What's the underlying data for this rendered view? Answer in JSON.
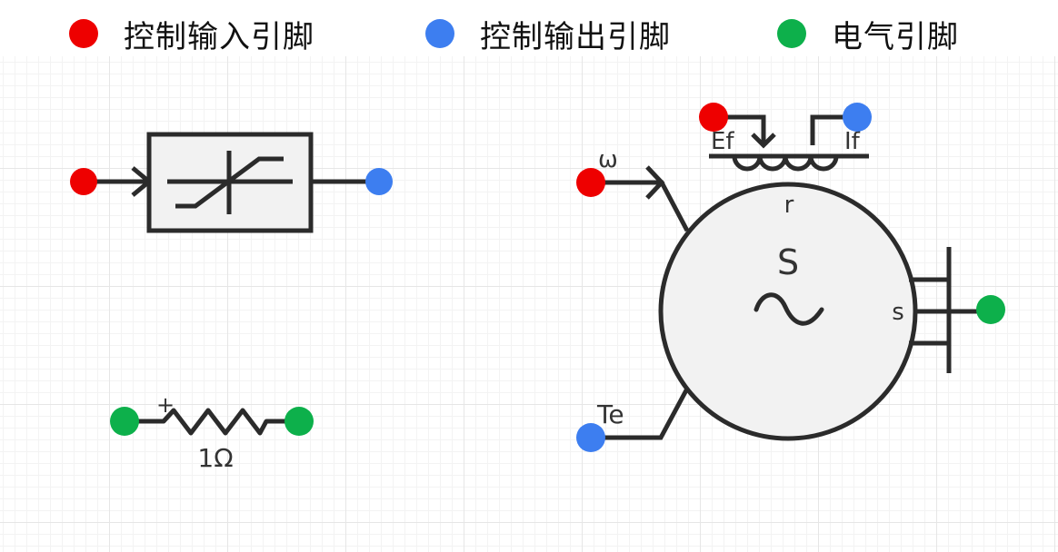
{
  "legend": [
    {
      "label": "控制输入引脚",
      "color": "#ee0000"
    },
    {
      "label": "控制输出引脚",
      "color": "#3d7ef0"
    },
    {
      "label": "电气引脚",
      "color": "#0db04b"
    }
  ],
  "resistor": {
    "label": "1Ω",
    "polarity": "+"
  },
  "machine": {
    "symbol": "S",
    "omega_label": "ω",
    "te_label": "Te",
    "ef_label": "Ef",
    "if_label": "If",
    "rotor_label": "r",
    "stator_label": "s"
  }
}
